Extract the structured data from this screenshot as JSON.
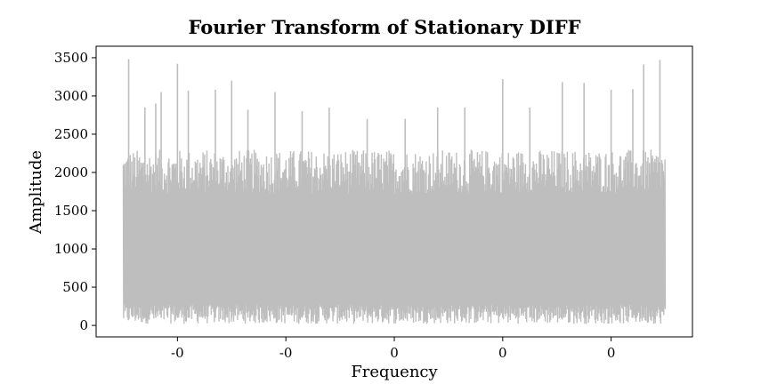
{
  "chart_data": {
    "type": "line",
    "title": "Fourier Transform of Stationary DIFF",
    "xlabel": "Frequency",
    "ylabel": "Amplitude",
    "xlim": [
      -0.55,
      0.55
    ],
    "ylim": [
      -150,
      3650
    ],
    "x_ticks": [
      {
        "value": -0.4,
        "label": "-0"
      },
      {
        "value": -0.2,
        "label": "-0"
      },
      {
        "value": 0.0,
        "label": "0"
      },
      {
        "value": 0.2,
        "label": "0"
      },
      {
        "value": 0.4,
        "label": "0"
      }
    ],
    "y_ticks": [
      0,
      500,
      1000,
      1500,
      2000,
      2500,
      3000,
      3500
    ],
    "grid": false,
    "series": [
      {
        "color": "#bebebe",
        "x_range": [
          -0.5,
          0.5
        ],
        "peaks": [
          {
            "x": -0.49,
            "y": 3480
          },
          {
            "x": -0.46,
            "y": 2850
          },
          {
            "x": -0.44,
            "y": 2900
          },
          {
            "x": -0.43,
            "y": 3050
          },
          {
            "x": -0.4,
            "y": 3420
          },
          {
            "x": -0.38,
            "y": 3070
          },
          {
            "x": -0.33,
            "y": 3080
          },
          {
            "x": -0.3,
            "y": 3200
          },
          {
            "x": -0.27,
            "y": 2820
          },
          {
            "x": -0.22,
            "y": 3050
          },
          {
            "x": -0.17,
            "y": 2800
          },
          {
            "x": -0.12,
            "y": 2850
          },
          {
            "x": -0.05,
            "y": 2700
          },
          {
            "x": 0.02,
            "y": 2700
          },
          {
            "x": 0.08,
            "y": 2850
          },
          {
            "x": 0.13,
            "y": 2850
          },
          {
            "x": 0.2,
            "y": 3220
          },
          {
            "x": 0.25,
            "y": 2850
          },
          {
            "x": 0.31,
            "y": 3180
          },
          {
            "x": 0.35,
            "y": 3170
          },
          {
            "x": 0.4,
            "y": 3080
          },
          {
            "x": 0.44,
            "y": 3090
          },
          {
            "x": 0.46,
            "y": 3410
          },
          {
            "x": 0.49,
            "y": 3470
          }
        ],
        "typical_max": 2300,
        "typical_min": 100
      }
    ]
  }
}
